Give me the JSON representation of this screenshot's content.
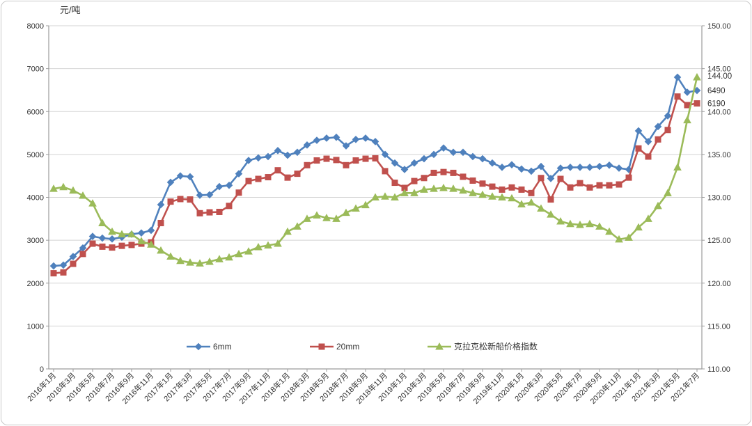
{
  "chart_data": {
    "type": "line",
    "left_axis_title": "元/吨",
    "left_axis": {
      "min": 0,
      "max": 8000,
      "step": 1000,
      "ticks": [
        "0",
        "1000",
        "2000",
        "3000",
        "4000",
        "5000",
        "6000",
        "7000",
        "8000"
      ]
    },
    "right_axis": {
      "min": 110,
      "max": 150,
      "step": 5,
      "ticks": [
        "110.00",
        "115.00",
        "120.00",
        "125.00",
        "130.00",
        "135.00",
        "140.00",
        "145.00",
        "150.00"
      ]
    },
    "x_tick_every": 2,
    "grid": true,
    "legend_position": "bottom-inside",
    "categories": [
      "2016年1月",
      "2016年2月",
      "2016年3月",
      "2016年4月",
      "2016年5月",
      "2016年6月",
      "2016年7月",
      "2016年8月",
      "2016年9月",
      "2016年10月",
      "2016年11月",
      "2016年12月",
      "2017年1月",
      "2017年2月",
      "2017年3月",
      "2017年4月",
      "2017年5月",
      "2017年6月",
      "2017年7月",
      "2017年8月",
      "2017年9月",
      "2017年10月",
      "2017年11月",
      "2017年12月",
      "2018年1月",
      "2018年2月",
      "2018年3月",
      "2018年4月",
      "2018年5月",
      "2018年6月",
      "2018年7月",
      "2018年8月",
      "2018年9月",
      "2018年10月",
      "2018年11月",
      "2018年12月",
      "2019年1月",
      "2019年2月",
      "2019年3月",
      "2019年4月",
      "2019年5月",
      "2019年6月",
      "2019年7月",
      "2019年8月",
      "2019年9月",
      "2019年10月",
      "2019年11月",
      "2019年12月",
      "2020年1月",
      "2020年2月",
      "2020年3月",
      "2020年4月",
      "2020年5月",
      "2020年6月",
      "2020年7月",
      "2020年8月",
      "2020年9月",
      "2020年10月",
      "2020年11月",
      "2020年12月",
      "2021年1月",
      "2021年2月",
      "2021年3月",
      "2021年4月",
      "2021年5月",
      "2021年6月",
      "2021年7月"
    ],
    "series": [
      {
        "name": "6mm",
        "axis": "left",
        "color": "#4F81BD",
        "marker": "diamond",
        "values": [
          2400,
          2420,
          2620,
          2820,
          3090,
          3050,
          3030,
          3070,
          3140,
          3170,
          3230,
          3830,
          4350,
          4500,
          4480,
          4050,
          4060,
          4250,
          4280,
          4550,
          4860,
          4920,
          4950,
          5090,
          4980,
          5050,
          5220,
          5330,
          5380,
          5400,
          5200,
          5350,
          5380,
          5300,
          5000,
          4800,
          4650,
          4800,
          4900,
          5000,
          5150,
          5050,
          5050,
          4950,
          4900,
          4800,
          4700,
          4760,
          4660,
          4610,
          4720,
          4440,
          4680,
          4700,
          4700,
          4700,
          4720,
          4750,
          4680,
          4650,
          5550,
          5300,
          5650,
          5900,
          6800,
          6450,
          6490
        ]
      },
      {
        "name": "20mm",
        "axis": "left",
        "color": "#C0504D",
        "marker": "square",
        "values": [
          2230,
          2250,
          2450,
          2680,
          2920,
          2850,
          2830,
          2870,
          2890,
          2920,
          2950,
          3400,
          3900,
          3960,
          3950,
          3630,
          3650,
          3660,
          3800,
          4110,
          4380,
          4430,
          4470,
          4630,
          4460,
          4550,
          4750,
          4860,
          4900,
          4870,
          4750,
          4860,
          4900,
          4910,
          4610,
          4340,
          4220,
          4380,
          4450,
          4570,
          4590,
          4570,
          4480,
          4390,
          4320,
          4250,
          4180,
          4230,
          4180,
          4100,
          4450,
          3950,
          4430,
          4230,
          4330,
          4230,
          4280,
          4280,
          4300,
          4460,
          5140,
          4950,
          5350,
          5570,
          6350,
          6150,
          6190
        ]
      },
      {
        "name": "克拉克松新船价格指数",
        "axis": "right",
        "color": "#9BBB59",
        "marker": "triangle",
        "values": [
          131.0,
          131.2,
          130.8,
          130.2,
          129.3,
          127.0,
          126.0,
          125.7,
          125.7,
          124.9,
          124.5,
          123.8,
          123.1,
          122.6,
          122.4,
          122.3,
          122.5,
          122.8,
          123.0,
          123.4,
          123.7,
          124.2,
          124.4,
          124.6,
          126.0,
          126.6,
          127.5,
          127.9,
          127.6,
          127.5,
          128.2,
          128.7,
          129.1,
          130.0,
          130.1,
          130.0,
          130.5,
          130.5,
          130.9,
          131.0,
          131.1,
          131.0,
          130.8,
          130.5,
          130.3,
          130.1,
          130.0,
          129.9,
          129.2,
          129.4,
          128.7,
          128.0,
          127.2,
          126.9,
          126.8,
          126.9,
          126.6,
          126.0,
          125.1,
          125.3,
          126.5,
          127.5,
          129.0,
          130.5,
          133.5,
          139.0,
          144.0
        ]
      }
    ],
    "end_labels": [
      {
        "text": "144.00",
        "series": 2
      },
      {
        "text": "6490",
        "series": 0
      },
      {
        "text": "6190",
        "series": 1
      }
    ],
    "legend": [
      "6mm",
      "20mm",
      "克拉克松新船价格指数"
    ]
  },
  "colors": {
    "grid": "#d3d3d3",
    "axis": "#9b9b9b",
    "tick_text": "#333333",
    "title_text": "#333333"
  }
}
